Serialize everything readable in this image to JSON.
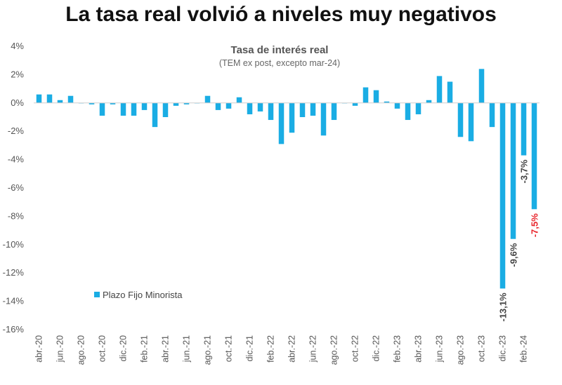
{
  "headline": "La tasa real volvió a niveles muy negativos",
  "chart_data": {
    "type": "bar",
    "title": "Tasa de interés real",
    "subtitle": "(TEM ex post, excepto mar-24)",
    "ylim": [
      -16,
      4
    ],
    "ytick_values": [
      4,
      2,
      0,
      -2,
      -4,
      -6,
      -8,
      -10,
      -12,
      -14,
      -16
    ],
    "ytick_labels": [
      "4%",
      "2%",
      "0%",
      "-2%",
      "-4%",
      "-6%",
      "-8%",
      "-10%",
      "-12%",
      "-14%",
      "-16%"
    ],
    "categories": [
      "abr.-20",
      "may.-20",
      "jun.-20",
      "jul.-20",
      "ago.-20",
      "sep.-20",
      "oct.-20",
      "nov.-20",
      "dic.-20",
      "ene.-21",
      "feb.-21",
      "mar.-21",
      "abr.-21",
      "may.-21",
      "jun.-21",
      "jul.-21",
      "ago.-21",
      "sep.-21",
      "oct.-21",
      "nov.-21",
      "dic.-21",
      "ene.-22",
      "feb.-22",
      "mar.-22",
      "abr.-22",
      "may.-22",
      "jun.-22",
      "jul.-22",
      "ago.-22",
      "sep.-22",
      "oct.-22",
      "nov.-22",
      "dic.-22",
      "ene.-23",
      "feb.-23",
      "mar.-23",
      "abr.-23",
      "may.-23",
      "jun.-23",
      "jul.-23",
      "ago.-23",
      "sep.-23",
      "oct.-23",
      "nov.-23",
      "dic.-23",
      "ene.-24",
      "feb.-24",
      "mar.-24"
    ],
    "tick_labels_shown": [
      "abr.-20",
      "jun.-20",
      "ago.-20",
      "oct.-20",
      "dic.-20",
      "feb.-21",
      "abr.-21",
      "jun.-21",
      "ago.-21",
      "oct.-21",
      "dic.-21",
      "feb.-22",
      "abr.-22",
      "jun.-22",
      "ago.-22",
      "oct.-22",
      "dic.-22",
      "feb.-23",
      "abr.-23",
      "jun.-23",
      "ago.-23",
      "oct.-23",
      "dic.-23",
      "feb.-24"
    ],
    "series": [
      {
        "name": "Plazo Fijo Minorista",
        "color": "#1AADE4",
        "values": [
          0.6,
          0.6,
          0.2,
          0.5,
          0.0,
          -0.1,
          -0.9,
          -0.1,
          -0.9,
          -0.9,
          -0.5,
          -1.7,
          -1.0,
          -0.2,
          -0.1,
          0.0,
          0.5,
          -0.5,
          -0.4,
          0.4,
          -0.8,
          -0.6,
          -1.2,
          -2.9,
          -2.1,
          -1.0,
          -0.9,
          -2.3,
          -1.2,
          0.0,
          -0.2,
          1.1,
          0.9,
          0.1,
          -0.4,
          -1.2,
          -0.8,
          0.2,
          1.9,
          1.5,
          -2.4,
          -2.7,
          2.4,
          -1.7,
          -13.1,
          -9.6,
          -3.7,
          -7.5
        ]
      }
    ],
    "data_labels": [
      {
        "index": 44,
        "text": "-13,1%",
        "color": "#444444"
      },
      {
        "index": 45,
        "text": "-9,6%",
        "color": "#444444"
      },
      {
        "index": 46,
        "text": "-3,7%",
        "color": "#444444"
      },
      {
        "index": 47,
        "text": "-7,5%",
        "color": "#E8232A"
      }
    ],
    "legend": {
      "label": "Plazo Fijo Minorista",
      "placement": "bottom-left"
    },
    "grid": false
  }
}
